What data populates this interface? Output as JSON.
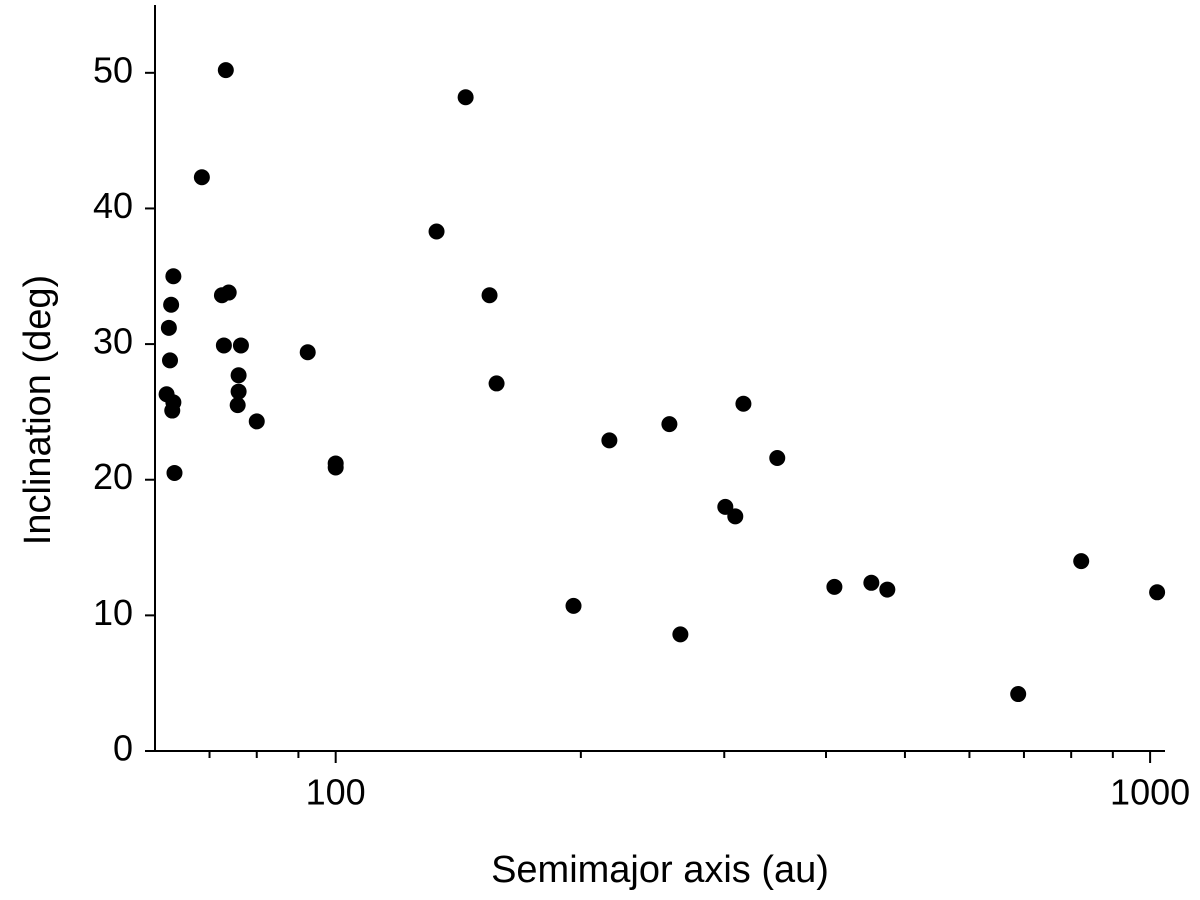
{
  "chart_data": {
    "type": "scatter",
    "x_label": "Semimajor axis (au)",
    "y_label": "Inclination (deg)",
    "xscale": "log",
    "xlim": [
      60,
      1043
    ],
    "ylim": [
      0,
      55
    ],
    "xticks": [
      100,
      1000
    ],
    "xminorticks": [
      70,
      80,
      90,
      200,
      300,
      400,
      500,
      600,
      700,
      800,
      900
    ],
    "yticks": [
      0,
      10,
      20,
      30,
      40,
      50
    ],
    "color": "#000000",
    "x": [
      62.0,
      62.6,
      62.4,
      62.8,
      63.2,
      63.2,
      63.0,
      63.4,
      68.5,
      73.3,
      72.5,
      73.9,
      72.9,
      76.5,
      76.0,
      76.0,
      75.8,
      80.0,
      92.4,
      100,
      100,
      133,
      144.4,
      154.5,
      157.6,
      195.9,
      216.8,
      256.9,
      265.0,
      300.9,
      309.5,
      316.7,
      348.5,
      409.6,
      454.7,
      475.7,
      688.7,
      823.0,
      1020
    ],
    "values": [
      26.3,
      28.8,
      31.2,
      32.9,
      35.0,
      25.7,
      25.1,
      20.5,
      42.3,
      50.2,
      33.6,
      33.8,
      29.9,
      29.9,
      27.7,
      26.5,
      25.5,
      24.3,
      29.4,
      21.2,
      20.9,
      38.3,
      48.2,
      33.6,
      27.1,
      10.7,
      22.9,
      24.1,
      8.6,
      18.0,
      17.3,
      25.6,
      21.6,
      12.1,
      12.4,
      11.9,
      4.2,
      14.0,
      11.7
    ]
  }
}
